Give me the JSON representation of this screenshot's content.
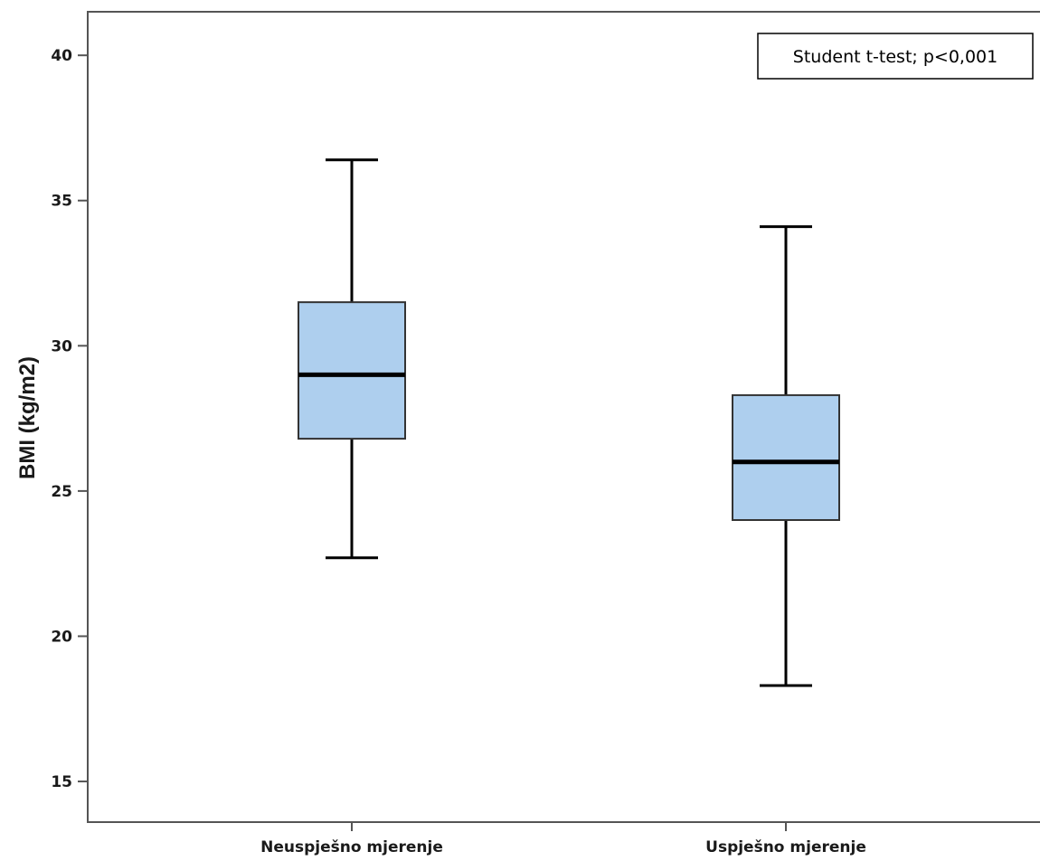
{
  "chart_data": {
    "type": "box",
    "ylabel": "BMI (kg/m2)",
    "xlabel": "",
    "ylim": [
      13.6,
      41.5
    ],
    "yticks": [
      15,
      20,
      25,
      30,
      35,
      40
    ],
    "grid": false,
    "categories": [
      "Neuspješno mjerenje",
      "Uspješno mjerenje"
    ],
    "boxes": [
      {
        "category": "Neuspješno mjerenje",
        "whisker_low": 22.7,
        "q1": 26.8,
        "median": 29.0,
        "q3": 31.5,
        "whisker_high": 36.4
      },
      {
        "category": "Uspješno mjerenje",
        "whisker_low": 18.3,
        "q1": 24.0,
        "median": 26.0,
        "q3": 28.3,
        "whisker_high": 34.1
      }
    ],
    "box_color": "#aecfee",
    "annotation": "Student t-test; p<0,001"
  }
}
